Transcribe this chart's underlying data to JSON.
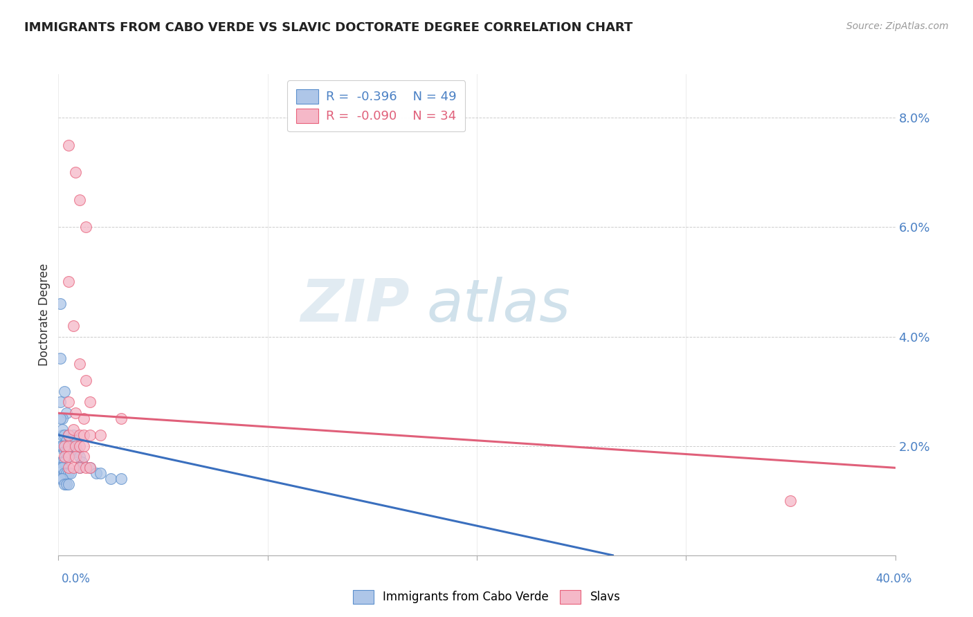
{
  "title": "IMMIGRANTS FROM CABO VERDE VS SLAVIC DOCTORATE DEGREE CORRELATION CHART",
  "source": "Source: ZipAtlas.com",
  "ylabel": "Doctorate Degree",
  "yticks": [
    0.0,
    0.02,
    0.04,
    0.06,
    0.08
  ],
  "ytick_labels": [
    "",
    "2.0%",
    "4.0%",
    "6.0%",
    "8.0%"
  ],
  "xlim": [
    0.0,
    0.4
  ],
  "ylim": [
    0.0,
    0.088
  ],
  "blue_color": "#aec6e8",
  "pink_color": "#f5b8c8",
  "blue_edge_color": "#5b8fcc",
  "pink_edge_color": "#e8607a",
  "blue_line_color": "#3a6fbe",
  "pink_line_color": "#e0607a",
  "watermark_zip": "ZIP",
  "watermark_atlas": "atlas",
  "blue_scatter": [
    [
      0.001,
      0.046
    ],
    [
      0.003,
      0.03
    ],
    [
      0.004,
      0.026
    ],
    [
      0.001,
      0.036
    ],
    [
      0.002,
      0.022
    ],
    [
      0.001,
      0.028
    ],
    [
      0.002,
      0.025
    ],
    [
      0.003,
      0.02
    ],
    [
      0.001,
      0.025
    ],
    [
      0.002,
      0.023
    ],
    [
      0.003,
      0.022
    ],
    [
      0.004,
      0.021
    ],
    [
      0.005,
      0.022
    ],
    [
      0.005,
      0.02
    ],
    [
      0.006,
      0.021
    ],
    [
      0.006,
      0.02
    ],
    [
      0.007,
      0.022
    ],
    [
      0.007,
      0.019
    ],
    [
      0.008,
      0.021
    ],
    [
      0.008,
      0.019
    ],
    [
      0.001,
      0.02
    ],
    [
      0.002,
      0.02
    ],
    [
      0.003,
      0.019
    ],
    [
      0.004,
      0.019
    ],
    [
      0.005,
      0.019
    ],
    [
      0.005,
      0.018
    ],
    [
      0.001,
      0.017
    ],
    [
      0.002,
      0.017
    ],
    [
      0.003,
      0.017
    ],
    [
      0.001,
      0.016
    ],
    [
      0.002,
      0.016
    ],
    [
      0.003,
      0.015
    ],
    [
      0.004,
      0.015
    ],
    [
      0.005,
      0.015
    ],
    [
      0.006,
      0.015
    ],
    [
      0.001,
      0.014
    ],
    [
      0.002,
      0.014
    ],
    [
      0.003,
      0.013
    ],
    [
      0.004,
      0.013
    ],
    [
      0.005,
      0.013
    ],
    [
      0.009,
      0.019
    ],
    [
      0.01,
      0.018
    ],
    [
      0.011,
      0.017
    ],
    [
      0.015,
      0.016
    ],
    [
      0.018,
      0.015
    ],
    [
      0.02,
      0.015
    ],
    [
      0.025,
      0.014
    ],
    [
      0.03,
      0.014
    ],
    [
      0.01,
      0.016
    ]
  ],
  "pink_scatter": [
    [
      0.005,
      0.075
    ],
    [
      0.008,
      0.07
    ],
    [
      0.01,
      0.065
    ],
    [
      0.013,
      0.06
    ],
    [
      0.005,
      0.05
    ],
    [
      0.007,
      0.042
    ],
    [
      0.01,
      0.035
    ],
    [
      0.013,
      0.032
    ],
    [
      0.005,
      0.028
    ],
    [
      0.008,
      0.026
    ],
    [
      0.012,
      0.025
    ],
    [
      0.015,
      0.028
    ],
    [
      0.005,
      0.022
    ],
    [
      0.007,
      0.023
    ],
    [
      0.01,
      0.022
    ],
    [
      0.012,
      0.022
    ],
    [
      0.015,
      0.022
    ],
    [
      0.02,
      0.022
    ],
    [
      0.003,
      0.02
    ],
    [
      0.005,
      0.02
    ],
    [
      0.008,
      0.02
    ],
    [
      0.01,
      0.02
    ],
    [
      0.012,
      0.02
    ],
    [
      0.003,
      0.018
    ],
    [
      0.005,
      0.018
    ],
    [
      0.008,
      0.018
    ],
    [
      0.012,
      0.018
    ],
    [
      0.005,
      0.016
    ],
    [
      0.007,
      0.016
    ],
    [
      0.01,
      0.016
    ],
    [
      0.013,
      0.016
    ],
    [
      0.015,
      0.016
    ],
    [
      0.35,
      0.01
    ],
    [
      0.03,
      0.025
    ]
  ],
  "blue_reg": [
    0.0,
    0.022,
    0.265,
    0.0
  ],
  "pink_reg": [
    0.0,
    0.026,
    0.4,
    0.016
  ]
}
